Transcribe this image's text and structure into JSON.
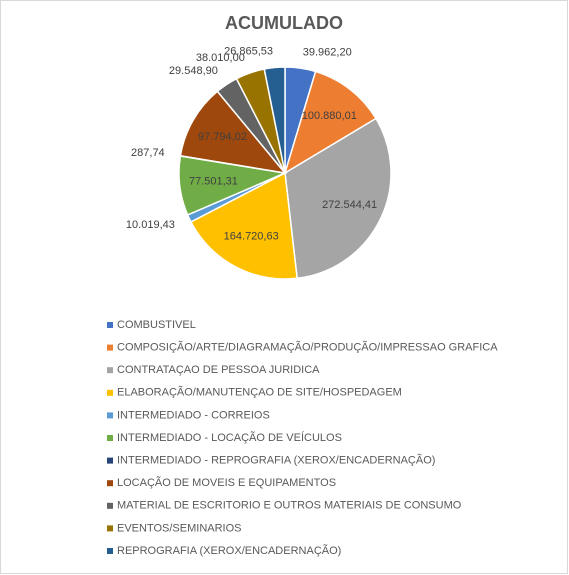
{
  "chart_data": {
    "type": "pie",
    "title": "ACUMULADO",
    "categories": [
      "COMBUSTIVEL",
      "COMPOSIÇÃO/ARTE/DIAGRAMAÇÃO/PRODUÇÃO/IMPRESSAO GRAFICA",
      "CONTRATAÇAO DE PESSOA JURIDICA",
      "ELABORAÇÃO/MANUTENÇAO DE SITE/HOSPEDAGEM",
      "INTERMEDIADO - CORREIOS",
      "INTERMEDIADO - LOCAÇÃO DE VEÍCULOS",
      "INTERMEDIADO - REPROGRAFIA (XEROX/ENCADERNAÇÃO)",
      "LOCAÇÃO DE MOVEIS E EQUIPAMENTOS",
      "MATERIAL DE ESCRITORIO E OUTROS MATERIAIS DE CONSUMO",
      "EVENTOS/SEMINARIOS",
      "REPROGRAFIA (XEROX/ENCADERNAÇÃO)"
    ],
    "values": [
      39962.2,
      100880.01,
      272544.41,
      164720.63,
      10019.43,
      77501.31,
      287.74,
      97794.02,
      29548.9,
      38010.0,
      26865.53
    ],
    "value_labels": [
      "39.962,20",
      "100.880,01",
      "272.544,41",
      "164.720,63",
      "10.019,43",
      "77.501,31",
      "287,74",
      "97.794,02",
      "29.548,90",
      "38.010,00",
      "26.865,53"
    ],
    "colors": [
      "#4472c4",
      "#ed7d31",
      "#a5a5a5",
      "#ffc000",
      "#5b9bd5",
      "#70ad47",
      "#264478",
      "#9e480e",
      "#636363",
      "#997300",
      "#255e91"
    ],
    "legend": "bottom"
  }
}
